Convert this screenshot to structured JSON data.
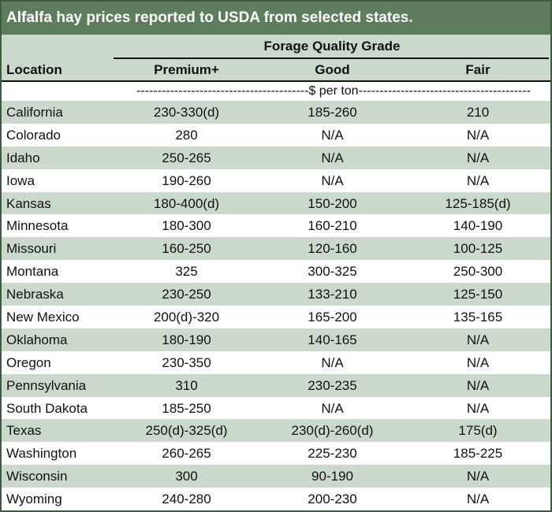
{
  "title": "Alfalfa hay prices reported to USDA from selected states.",
  "header": {
    "group_label": "Forage Quality Grade",
    "location_label": "Location",
    "columns": [
      "Premium+",
      "Good",
      "Fair"
    ],
    "unit_text": "-----------------------------------------$ per ton-----------------------------------------"
  },
  "rows": [
    {
      "location": "California",
      "premium": "230-330(d)",
      "good": "185-260",
      "fair": "210"
    },
    {
      "location": "Colorado",
      "premium": "280",
      "good": "N/A",
      "fair": "N/A"
    },
    {
      "location": "Idaho",
      "premium": "250-265",
      "good": "N/A",
      "fair": "N/A"
    },
    {
      "location": "Iowa",
      "premium": "190-260",
      "good": "N/A",
      "fair": "N/A"
    },
    {
      "location": "Kansas",
      "premium": "180-400(d)",
      "good": "150-200",
      "fair": "125-185(d)"
    },
    {
      "location": "Minnesota",
      "premium": "180-300",
      "good": "160-210",
      "fair": "140-190"
    },
    {
      "location": "Missouri",
      "premium": "160-250",
      "good": "120-160",
      "fair": "100-125"
    },
    {
      "location": "Montana",
      "premium": "325",
      "good": "300-325",
      "fair": "250-300"
    },
    {
      "location": "Nebraska",
      "premium": "230-250",
      "good": "133-210",
      "fair": "125-150"
    },
    {
      "location": "New Mexico",
      "premium": "200(d)-320",
      "good": "165-200",
      "fair": "135-165"
    },
    {
      "location": "Oklahoma",
      "premium": "180-190",
      "good": "140-165",
      "fair": "N/A"
    },
    {
      "location": "Oregon",
      "premium": "230-350",
      "good": "N/A",
      "fair": "N/A"
    },
    {
      "location": "Pennsylvania",
      "premium": "310",
      "good": "230-235",
      "fair": "N/A"
    },
    {
      "location": "South Dakota",
      "premium": "185-250",
      "good": "N/A",
      "fair": "N/A"
    },
    {
      "location": "Texas",
      "premium": "250(d)-325(d)",
      "good": "230(d)-260(d)",
      "fair": "175(d)"
    },
    {
      "location": "Washington",
      "premium": "260-265",
      "good": "225-230",
      "fair": "185-225"
    },
    {
      "location": "Wisconsin",
      "premium": "300",
      "good": "90-190",
      "fair": "N/A"
    },
    {
      "location": "Wyoming",
      "premium": "240-280",
      "good": "200-230",
      "fair": "N/A"
    }
  ],
  "colors": {
    "title_bg": "#5e7d5e",
    "band": "#cbd8cc",
    "border": "#3f5b3f"
  }
}
